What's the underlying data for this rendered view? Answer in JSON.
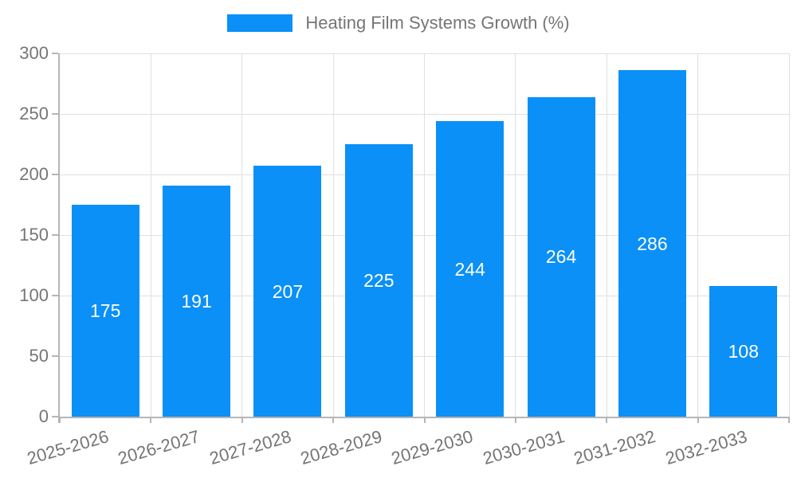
{
  "legend": {
    "label": "Heating Film Systems Growth (%)"
  },
  "chart_data": {
    "type": "bar",
    "title": "Heating Film Systems Growth (%)",
    "categories": [
      "2025-2026",
      "2026-2027",
      "2027-2028",
      "2028-2029",
      "2029-2030",
      "2030-2031",
      "2031-2032",
      "2032-2033"
    ],
    "values": [
      175,
      191,
      207,
      225,
      244,
      264,
      286,
      108
    ],
    "xlabel": "",
    "ylabel": "",
    "ylim": [
      0,
      300
    ],
    "yticks": [
      0,
      50,
      100,
      150,
      200,
      250,
      300
    ],
    "grid": true,
    "legend_position": "top-center",
    "bar_labels_inside": true,
    "colors": {
      "bar": "#0a90f7",
      "axis_line": "#b5b5b5",
      "gridline": "#e0e0e0",
      "axis_text": "#757575",
      "bar_label_text": "#ffffff"
    }
  }
}
